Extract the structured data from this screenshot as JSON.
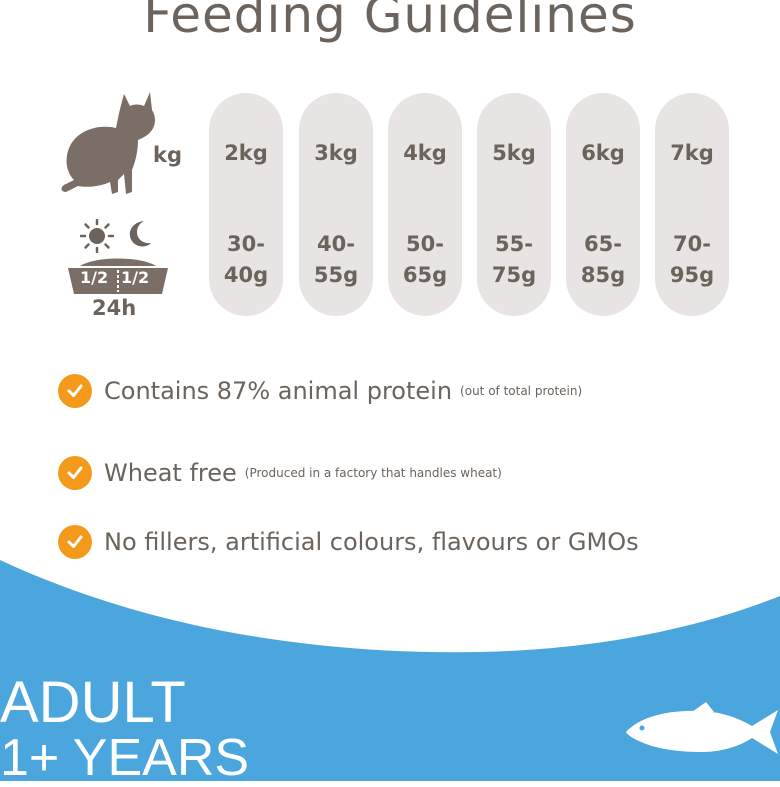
{
  "title": "Feeding Guidelines",
  "kg_label": "kg",
  "bowl": {
    "left_label": "1/2",
    "right_label": "1/2",
    "period": "24h"
  },
  "guidelines": [
    {
      "weight": "2kg",
      "amount_line1": "30-",
      "amount_line2": "40g"
    },
    {
      "weight": "3kg",
      "amount_line1": "40-",
      "amount_line2": "55g"
    },
    {
      "weight": "4kg",
      "amount_line1": "50-",
      "amount_line2": "65g"
    },
    {
      "weight": "5kg",
      "amount_line1": "55-",
      "amount_line2": "75g"
    },
    {
      "weight": "6kg",
      "amount_line1": "65-",
      "amount_line2": "85g"
    },
    {
      "weight": "7kg",
      "amount_line1": "70-",
      "amount_line2": "95g"
    }
  ],
  "features": [
    {
      "main": "Contains 87% animal protein",
      "note": "(out of total protein)"
    },
    {
      "main": "Wheat free",
      "note": "(Produced in a factory that handles wheat)"
    },
    {
      "main": "No fillers, artificial colours, flavours or GMOs",
      "note": ""
    }
  ],
  "banner": {
    "line1": "ADULT",
    "line2": "1+ YEARS"
  },
  "icons": {
    "cat": "cat-silhouette-icon",
    "sun": "sun-icon",
    "moon": "moon-icon",
    "bowl": "food-bowl-icon",
    "check": "check-circle-icon",
    "fish": "fish-icon"
  },
  "colors": {
    "text": "#6b635c",
    "pill": "#e7e4e3",
    "check": "#f39a1d",
    "banner": "#4aa6dc"
  }
}
